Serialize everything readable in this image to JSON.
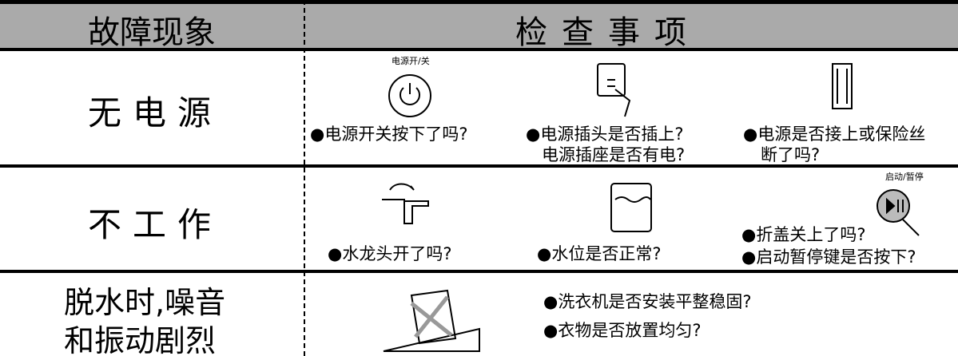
{
  "header": {
    "symptom": "故障现象",
    "checks": "检查事项"
  },
  "rows": [
    {
      "symptom": [
        "无电源"
      ],
      "checks": [
        {
          "icon_label": "电源开/关",
          "lines": [
            "●电源开关按下了吗?"
          ]
        },
        {
          "lines": [
            "●电源插头是否插上?",
            "电源插座是否有电?"
          ]
        },
        {
          "lines": [
            "●电源是否接上或保险丝",
            "断了吗?"
          ]
        }
      ]
    },
    {
      "symptom": [
        "不工作"
      ],
      "checks": [
        {
          "lines": [
            "●水龙头开了吗?"
          ]
        },
        {
          "lines": [
            "●水位是否正常?"
          ]
        },
        {
          "icon_label": "启动/暂停",
          "lines": [
            "●折盖关上了吗?",
            "●启动暂停键是否按下?"
          ]
        }
      ]
    },
    {
      "symptom": [
        "脱水时,噪音",
        "和振动剧烈"
      ],
      "checks": [
        {
          "lines": [
            "●洗衣机是否安装平整稳固?",
            "●衣物是否放置均匀?"
          ]
        }
      ]
    }
  ]
}
